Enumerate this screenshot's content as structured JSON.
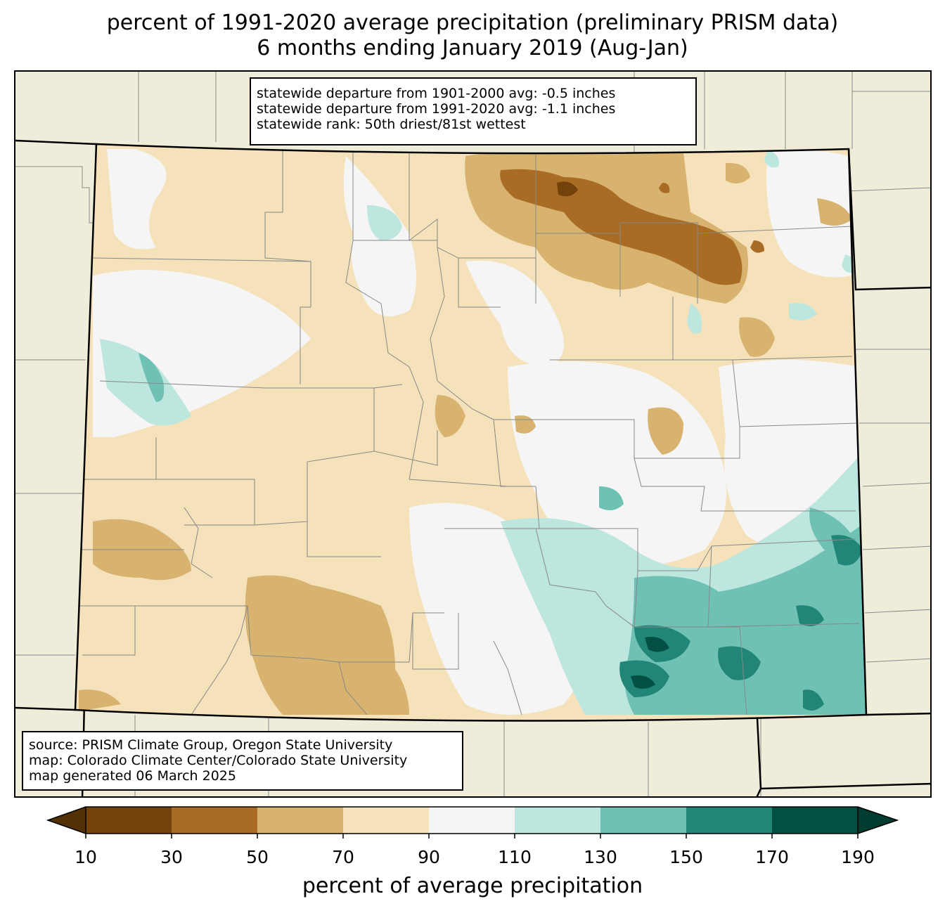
{
  "title": {
    "line1": "percent of 1991-2020 average precipitation (preliminary PRISM data)",
    "line2": "6 months ending January 2019 (Aug-Jan)"
  },
  "stats_box": {
    "line1": "statewide departure from 1901-2000 avg: -0.5 inches",
    "line2": "statewide departure from 1991-2020 avg: -1.1 inches",
    "line3": "statewide rank: 50th driest/81st wettest"
  },
  "source_box": {
    "line1": "source: PRISM Climate Group, Oregon State University",
    "line2": "map: Colorado Climate Center/Colorado State University",
    "line3": "map generated 06 March 2025"
  },
  "colorbar": {
    "label": "percent of average precipitation",
    "ticks": [
      "10",
      "30",
      "50",
      "70",
      "90",
      "110",
      "130",
      "150",
      "170",
      "190"
    ],
    "colors": {
      "under": "#543005",
      "bins": [
        "#73410a",
        "#a96c25",
        "#d8b26f",
        "#f5e2ba",
        "#f4f5f4",
        "#bde6df",
        "#6fc1b4",
        "#218677",
        "#024f43"
      ],
      "over": "#003c30"
    }
  },
  "map": {
    "land_color": "#efedda",
    "state_fill_base": "#f5e2ba"
  }
}
